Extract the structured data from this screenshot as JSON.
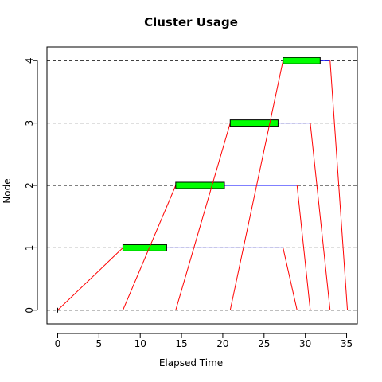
{
  "chart_data": {
    "type": "gantt",
    "title": "Cluster Usage",
    "xlabel": "Elapsed Time",
    "ylabel": "Node",
    "xlim": [
      -1.3,
      36.3
    ],
    "ylim": [
      -0.22,
      4.22
    ],
    "x_ticks": [
      "0",
      "5",
      "10",
      "15",
      "20",
      "25",
      "30",
      "35"
    ],
    "y_ticks": [
      "0",
      "1",
      "2",
      "3",
      "4"
    ],
    "grid": "dashed horizontal at each node",
    "colors": {
      "compute": "#00ff00",
      "wait": "#0000ff",
      "send": "#ff0000",
      "grid": "#000000"
    },
    "jobs": [
      {
        "node": 1,
        "send_start": 0.0,
        "compute_start": 7.9,
        "compute_end": 13.2,
        "wait_end": 27.3,
        "recv_end": 29.0
      },
      {
        "node": 2,
        "send_start": 7.9,
        "compute_start": 14.3,
        "compute_end": 20.2,
        "wait_end": 29.0,
        "recv_end": 30.6
      },
      {
        "node": 3,
        "send_start": 14.3,
        "compute_start": 20.9,
        "compute_end": 26.7,
        "wait_end": 30.6,
        "recv_end": 33.0
      },
      {
        "node": 4,
        "send_start": 20.9,
        "compute_start": 27.3,
        "compute_end": 31.8,
        "wait_end": 33.0,
        "recv_end": 35.1
      }
    ]
  }
}
